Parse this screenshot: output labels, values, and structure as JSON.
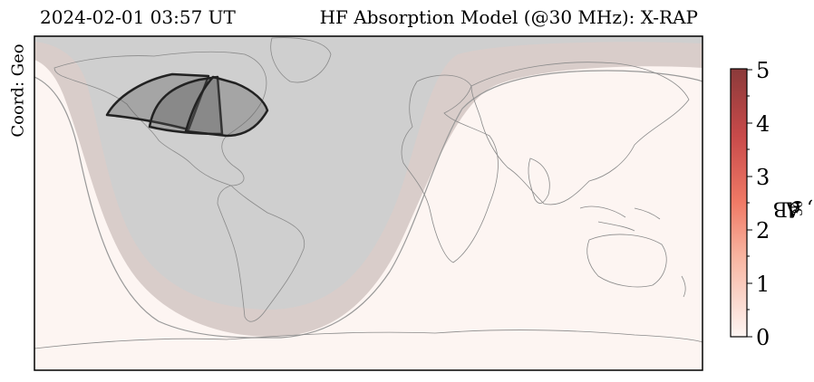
{
  "header": {
    "timestamp": "2024-02-01 03:57 UT",
    "model_title": "HF Absorption Model (@30 MHz): X-RAP"
  },
  "side": {
    "coord_label": "Coord: Geo"
  },
  "colorbar": {
    "label_main": "A",
    "label_sub": "30",
    "label_unit": ", dB",
    "ticks": [
      "0",
      "1",
      "2",
      "3",
      "4",
      "5"
    ],
    "range": [
      0,
      5
    ],
    "color_low": "#fdf5f2",
    "color_high": "#8b3a3a"
  },
  "map": {
    "night_color": "#cfcfcf",
    "terminator_color": "#d9cdca",
    "day_color": "#fdf5f2",
    "coastline_color": "#8a8a8a"
  }
}
